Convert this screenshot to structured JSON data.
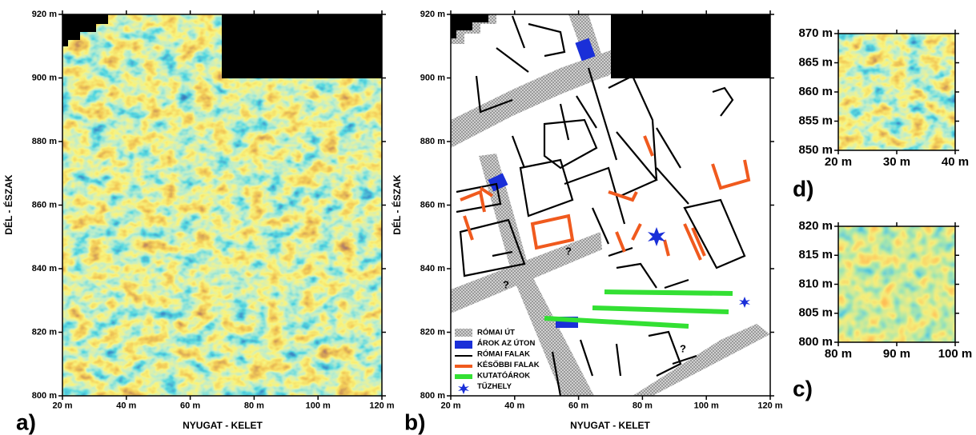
{
  "panels": [
    {
      "label": "a)",
      "x_label": "NYUGAT - KELET",
      "y_label": "DÉL - ÉSZAK",
      "xticks": [
        "20 m",
        "40 m",
        "60 m",
        "80 m",
        "100 m",
        "120 m"
      ],
      "yticks": [
        "800 m",
        "820 m",
        "840 m",
        "860 m",
        "880 m",
        "900 m",
        "920 m"
      ]
    },
    {
      "label": "b)",
      "x_label": "NYUGAT - KELET",
      "y_label": "DÉL - ÉSZAK",
      "xticks": [
        "20 m",
        "40 m",
        "60 m",
        "80 m",
        "100 m",
        "120 m"
      ],
      "yticks": [
        "800 m",
        "820 m",
        "840 m",
        "860 m",
        "880 m",
        "900 m",
        "920 m"
      ],
      "legend": [
        "RÓMAI ÚT",
        "ÁROK AZ ÚTON",
        "RÓMAI FALAK",
        "KÉSŐBBI FALAK",
        "KUTATÓÁROK",
        "TŰZHELY"
      ],
      "annotations": [
        "?",
        "?",
        "?"
      ]
    },
    {
      "label": "d)",
      "xticks": [
        "20 m",
        "30 m",
        "40 m"
      ],
      "yticks": [
        "850 m",
        "855 m",
        "860 m",
        "865 m",
        "870 m"
      ]
    },
    {
      "label": "c)",
      "xticks": [
        "80 m",
        "90 m",
        "100 m"
      ],
      "yticks": [
        "800 m",
        "805 m",
        "810 m",
        "815 m",
        "820 m"
      ]
    }
  ]
}
